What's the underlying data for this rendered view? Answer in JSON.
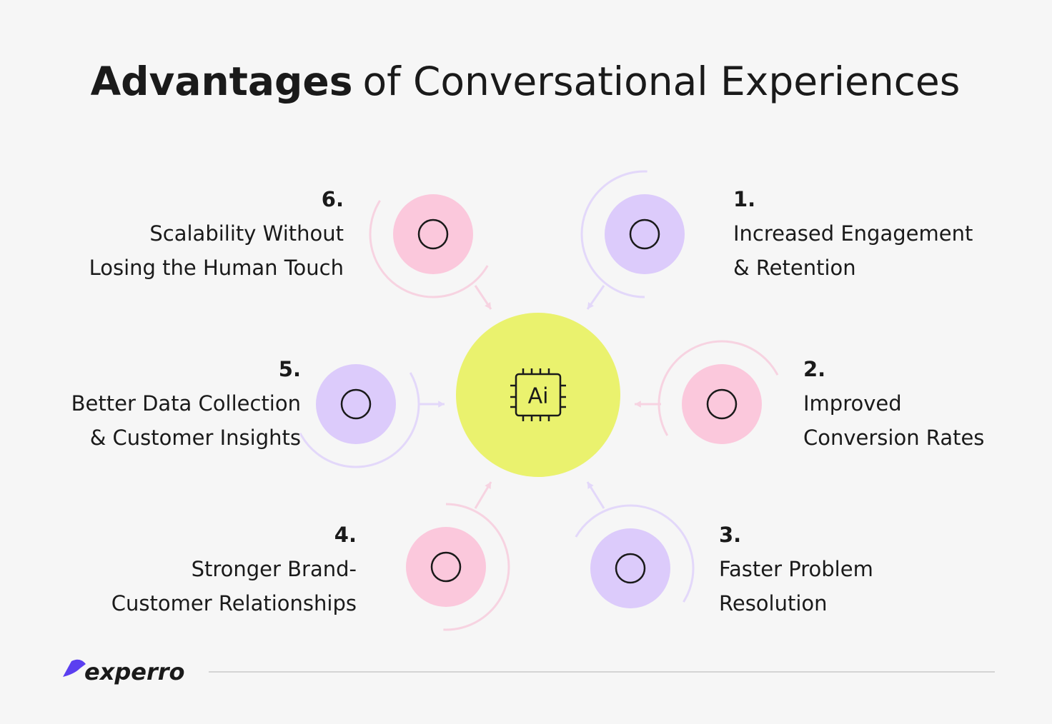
{
  "title": {
    "bold": "Advantages",
    "rest": "of Conversational Experiences"
  },
  "center": {
    "label": "Ai"
  },
  "items": [
    {
      "number": "1.",
      "lines": [
        "Increased Engagement",
        "& Retention"
      ]
    },
    {
      "number": "2.",
      "lines": [
        "Improved",
        "Conversion Rates"
      ]
    },
    {
      "number": "3.",
      "lines": [
        "Faster Problem",
        "Resolution"
      ]
    },
    {
      "number": "4.",
      "lines": [
        "Stronger Brand-",
        "Customer Relationships"
      ]
    },
    {
      "number": "5.",
      "lines": [
        "Better Data Collection",
        "& Customer Insights"
      ]
    },
    {
      "number": "6.",
      "lines": [
        "Scalability Without",
        "Losing the Human Touch"
      ]
    }
  ],
  "logo": "experro"
}
